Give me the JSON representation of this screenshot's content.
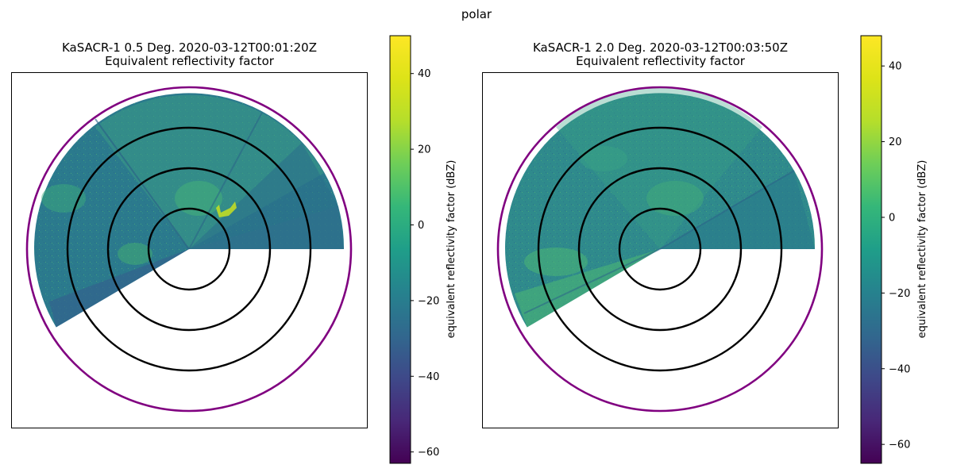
{
  "suptitle": "polar",
  "chart_data": [
    {
      "type": "heatmap",
      "projection": "polar",
      "title_line1": "KaSACR-1 0.5 Deg. 2020-03-12T00:01:20Z",
      "title_line2": "Equivalent reflectivity factor",
      "colorbar": {
        "label": "equivalent reflectivity factor (dBZ)",
        "colormap": "viridis",
        "range": [
          -63,
          50
        ],
        "ticks": [
          40,
          20,
          0,
          -20,
          -40,
          -60
        ],
        "tick_labels": [
          "40",
          "20",
          "0",
          "−20",
          "−40",
          "−60"
        ]
      },
      "sector_azimuth_deg": [
        0,
        240
      ],
      "range_rings": {
        "count": 3,
        "color": "#000000"
      },
      "outer_ring_color": "#800080",
      "grid": false,
      "axis_ticks": false
    },
    {
      "type": "heatmap",
      "projection": "polar",
      "title_line1": "KaSACR-1 2.0 Deg. 2020-03-12T00:03:50Z",
      "title_line2": "Equivalent reflectivity factor",
      "colorbar": {
        "label": "equivalent reflectivity factor (dBZ)",
        "colormap": "viridis",
        "range": [
          -65,
          48
        ],
        "ticks": [
          40,
          20,
          0,
          -20,
          -40,
          -60
        ],
        "tick_labels": [
          "40",
          "20",
          "0",
          "−20",
          "−40",
          "−60"
        ]
      },
      "sector_azimuth_deg": [
        0,
        240
      ],
      "range_rings": {
        "count": 3,
        "color": "#000000"
      },
      "outer_ring_color": "#800080",
      "grid": false,
      "axis_ticks": false
    }
  ]
}
